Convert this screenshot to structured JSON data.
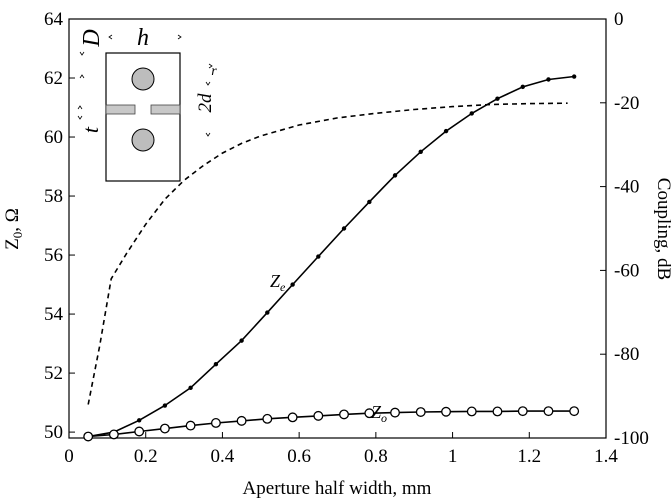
{
  "chart_data": {
    "type": "line",
    "xlabel": "Aperture half width, mm",
    "ylabel_left": "Z0, Ω",
    "ylabel_right": "Coupling, dB",
    "xlim": [
      0,
      1.4
    ],
    "ylim_left": [
      49.8,
      64
    ],
    "ylim_right": [
      -100,
      0
    ],
    "x_ticks": [
      "0",
      "0.2",
      "0.4",
      "0.6",
      "0.8",
      "1",
      "1.2",
      "1.4"
    ],
    "y_left_ticks": [
      "50",
      "52",
      "54",
      "56",
      "58",
      "60",
      "62",
      "64"
    ],
    "y_right_ticks": [
      "0",
      "-20",
      "-40",
      "-60",
      "-80",
      "-100"
    ],
    "grid": false,
    "series": [
      {
        "name": "Ze",
        "axis": "left",
        "marker": "dot",
        "x": [
          0.05,
          0.117,
          0.183,
          0.25,
          0.317,
          0.383,
          0.45,
          0.517,
          0.583,
          0.65,
          0.717,
          0.783,
          0.85,
          0.917,
          0.983,
          1.05,
          1.117,
          1.183,
          1.25,
          1.317
        ],
        "values": [
          49.85,
          50.0,
          50.4,
          50.9,
          51.5,
          52.3,
          53.1,
          54.05,
          55.0,
          55.95,
          56.9,
          57.8,
          58.7,
          59.5,
          60.2,
          60.8,
          61.3,
          61.7,
          61.95,
          62.05
        ]
      },
      {
        "name": "Zo",
        "axis": "left",
        "marker": "circle",
        "x": [
          0.05,
          0.117,
          0.183,
          0.25,
          0.317,
          0.383,
          0.45,
          0.517,
          0.583,
          0.65,
          0.717,
          0.783,
          0.85,
          0.917,
          0.983,
          1.05,
          1.117,
          1.183,
          1.25,
          1.317
        ],
        "values": [
          49.85,
          49.92,
          50.02,
          50.12,
          50.22,
          50.31,
          50.38,
          50.45,
          50.5,
          50.55,
          50.6,
          50.64,
          50.66,
          50.68,
          50.69,
          50.7,
          50.7,
          50.71,
          50.71,
          50.71
        ]
      },
      {
        "name": "Coupling",
        "axis": "right",
        "style": "dashed",
        "x": [
          0.05,
          0.08,
          0.11,
          0.15,
          0.2,
          0.25,
          0.3,
          0.35,
          0.4,
          0.45,
          0.5,
          0.6,
          0.7,
          0.8,
          0.9,
          1.0,
          1.1,
          1.2,
          1.3
        ],
        "values": [
          -92,
          -78,
          -62,
          -56,
          -49,
          -43,
          -38.5,
          -35,
          -32,
          -29.7,
          -27.9,
          -25.3,
          -23.6,
          -22.5,
          -21.6,
          -20.9,
          -20.4,
          -20.2,
          -20.1
        ]
      }
    ],
    "annotations": {
      "ze_label": "Z",
      "ze_sub": "e",
      "zo_label": "Z",
      "zo_sub": "o"
    },
    "inset": {
      "labels": {
        "D": "D",
        "h": "h",
        "r": "r",
        "t": "t",
        "two_d": "2d"
      }
    }
  },
  "colors": {
    "line": "#000000",
    "circle_fill": "#bdbdbd",
    "plate_fill": "#c8c8c8"
  }
}
